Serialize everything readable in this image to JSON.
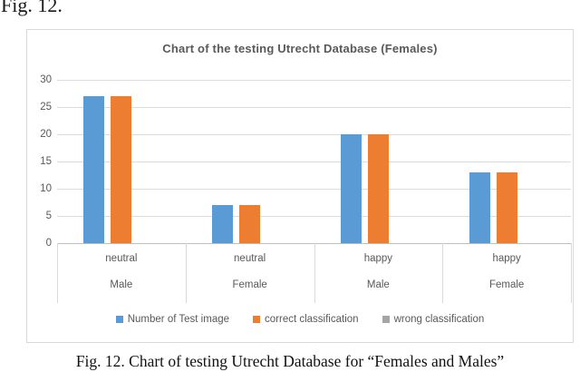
{
  "figure": {
    "top_label": "Fig. 12.",
    "caption": "Fig. 12. Chart of testing Utrecht Database for “Females and Males”"
  },
  "chart_data": {
    "type": "bar",
    "title": "Chart of  the testing Utrecht Database (Females)",
    "categories": [
      {
        "emotion": "neutral",
        "gender": "Male"
      },
      {
        "emotion": "neutral",
        "gender": "Female"
      },
      {
        "emotion": "happy",
        "gender": "Male"
      },
      {
        "emotion": "happy",
        "gender": "Female"
      }
    ],
    "series": [
      {
        "name": "Number of Test image",
        "color": "#5B9BD5",
        "values": [
          27,
          7,
          20,
          13
        ]
      },
      {
        "name": "correct classification",
        "color": "#ED7D31",
        "values": [
          27,
          7,
          20,
          13
        ]
      },
      {
        "name": "wrong classification",
        "color": "#A5A5A5",
        "values": [
          0,
          0,
          0,
          0
        ]
      }
    ],
    "ylim": [
      0,
      30
    ],
    "yticks": [
      0,
      5,
      10,
      15,
      20,
      25,
      30
    ],
    "grid": true,
    "legend_position": "bottom",
    "colors": {
      "text": "#595959",
      "gridline": "#DCDCDC",
      "axis_line": "#BFBFBF",
      "border": "#D9D9D9"
    }
  }
}
